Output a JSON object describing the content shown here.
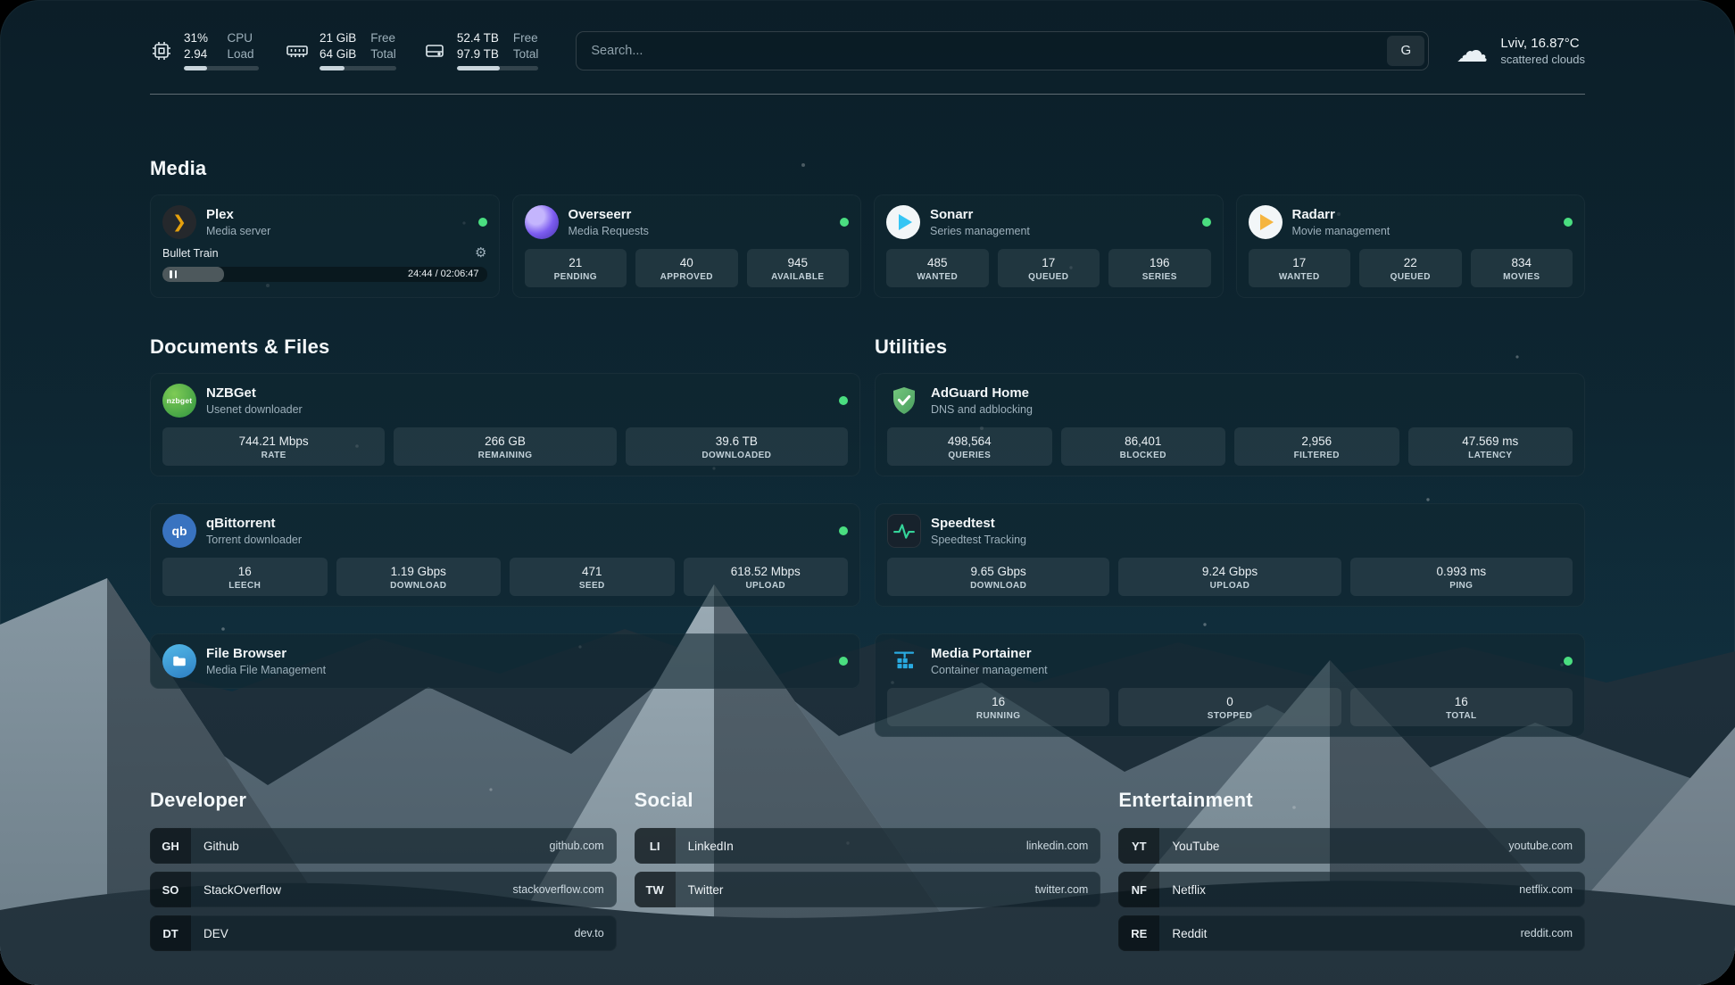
{
  "glyphs": {
    "gear": "⚙",
    "cloud": "☁",
    "plex_chevron": "❯"
  },
  "icons": {
    "nzbget_text": "nzbget",
    "qbittorrent_text": "qb"
  },
  "colors": {
    "status_online": "#4ade80",
    "plex_accent": "#e5a00d",
    "overseerr_accent": "#7c5cf0",
    "sonarr_accent": "#35c5f4",
    "radarr_accent": "#f5b53f",
    "nzbget_accent": "#3f9e4c",
    "qbittorrent_accent": "#3973c0",
    "filebrowser_accent": "#3596db",
    "adguard_accent": "#67b279",
    "speedtest_accent": "#34d399",
    "portainer_accent": "#29aae1"
  },
  "header": {
    "cpu": {
      "percent_label": "31%",
      "load_value": "2.94",
      "row1_label": "CPU",
      "row2_label": "Load",
      "percent": 31
    },
    "memory": {
      "free_value": "21 GiB",
      "total_value": "64 GiB",
      "row1_label": "Free",
      "row2_label": "Total",
      "percent": 33
    },
    "disk": {
      "free_value": "52.4 TB",
      "total_value": "97.9 TB",
      "row1_label": "Free",
      "row2_label": "Total",
      "percent": 53
    },
    "search": {
      "placeholder": "Search...",
      "provider_label": "G"
    },
    "weather": {
      "location": "Lviv, 16.87°C",
      "condition": "scattered clouds"
    }
  },
  "media": {
    "title": "Media",
    "plex": {
      "name": "Plex",
      "subtitle": "Media server",
      "status": "online",
      "now_playing": "Bullet Train",
      "time": "24:44 / 02:06:47",
      "progress_percent": 19
    },
    "overseerr": {
      "name": "Overseerr",
      "subtitle": "Media Requests",
      "status": "online",
      "stats": [
        {
          "value": "21",
          "label": "PENDING"
        },
        {
          "value": "40",
          "label": "APPROVED"
        },
        {
          "value": "945",
          "label": "AVAILABLE"
        }
      ]
    },
    "sonarr": {
      "name": "Sonarr",
      "subtitle": "Series management",
      "status": "online",
      "stats": [
        {
          "value": "485",
          "label": "WANTED"
        },
        {
          "value": "17",
          "label": "QUEUED"
        },
        {
          "value": "196",
          "label": "SERIES"
        }
      ]
    },
    "radarr": {
      "name": "Radarr",
      "subtitle": "Movie management",
      "status": "online",
      "stats": [
        {
          "value": "17",
          "label": "WANTED"
        },
        {
          "value": "22",
          "label": "QUEUED"
        },
        {
          "value": "834",
          "label": "MOVIES"
        }
      ]
    }
  },
  "documents": {
    "title": "Documents & Files",
    "nzbget": {
      "name": "NZBGet",
      "subtitle": "Usenet downloader",
      "status": "online",
      "stats": [
        {
          "value": "744.21 Mbps",
          "label": "RATE"
        },
        {
          "value": "266 GB",
          "label": "REMAINING"
        },
        {
          "value": "39.6 TB",
          "label": "DOWNLOADED"
        }
      ]
    },
    "qbittorrent": {
      "name": "qBittorrent",
      "subtitle": "Torrent downloader",
      "status": "online",
      "stats": [
        {
          "value": "16",
          "label": "LEECH"
        },
        {
          "value": "1.19 Gbps",
          "label": "DOWNLOAD"
        },
        {
          "value": "471",
          "label": "SEED"
        },
        {
          "value": "618.52 Mbps",
          "label": "UPLOAD"
        }
      ]
    },
    "filebrowser": {
      "name": "File Browser",
      "subtitle": "Media File Management",
      "status": "online"
    }
  },
  "utilities": {
    "title": "Utilities",
    "adguard": {
      "name": "AdGuard Home",
      "subtitle": "DNS and adblocking",
      "stats": [
        {
          "value": "498,564",
          "label": "QUERIES"
        },
        {
          "value": "86,401",
          "label": "BLOCKED"
        },
        {
          "value": "2,956",
          "label": "FILTERED"
        },
        {
          "value": "47.569 ms",
          "label": "LATENCY"
        }
      ]
    },
    "speedtest": {
      "name": "Speedtest",
      "subtitle": "Speedtest Tracking",
      "stats": [
        {
          "value": "9.65 Gbps",
          "label": "DOWNLOAD"
        },
        {
          "value": "9.24 Gbps",
          "label": "UPLOAD"
        },
        {
          "value": "0.993 ms",
          "label": "PING"
        }
      ]
    },
    "portainer": {
      "name": "Media Portainer",
      "subtitle": "Container management",
      "status": "online",
      "stats": [
        {
          "value": "16",
          "label": "RUNNING"
        },
        {
          "value": "0",
          "label": "STOPPED"
        },
        {
          "value": "16",
          "label": "TOTAL"
        }
      ]
    }
  },
  "bookmarks": [
    {
      "title": "Developer",
      "items": [
        {
          "abbr": "GH",
          "name": "Github",
          "url": "github.com"
        },
        {
          "abbr": "SO",
          "name": "StackOverflow",
          "url": "stackoverflow.com"
        },
        {
          "abbr": "DT",
          "name": "DEV",
          "url": "dev.to"
        }
      ]
    },
    {
      "title": "Social",
      "items": [
        {
          "abbr": "LI",
          "name": "LinkedIn",
          "url": "linkedin.com"
        },
        {
          "abbr": "TW",
          "name": "Twitter",
          "url": "twitter.com"
        }
      ]
    },
    {
      "title": "Entertainment",
      "items": [
        {
          "abbr": "YT",
          "name": "YouTube",
          "url": "youtube.com"
        },
        {
          "abbr": "NF",
          "name": "Netflix",
          "url": "netflix.com"
        },
        {
          "abbr": "RE",
          "name": "Reddit",
          "url": "reddit.com"
        }
      ]
    }
  ]
}
